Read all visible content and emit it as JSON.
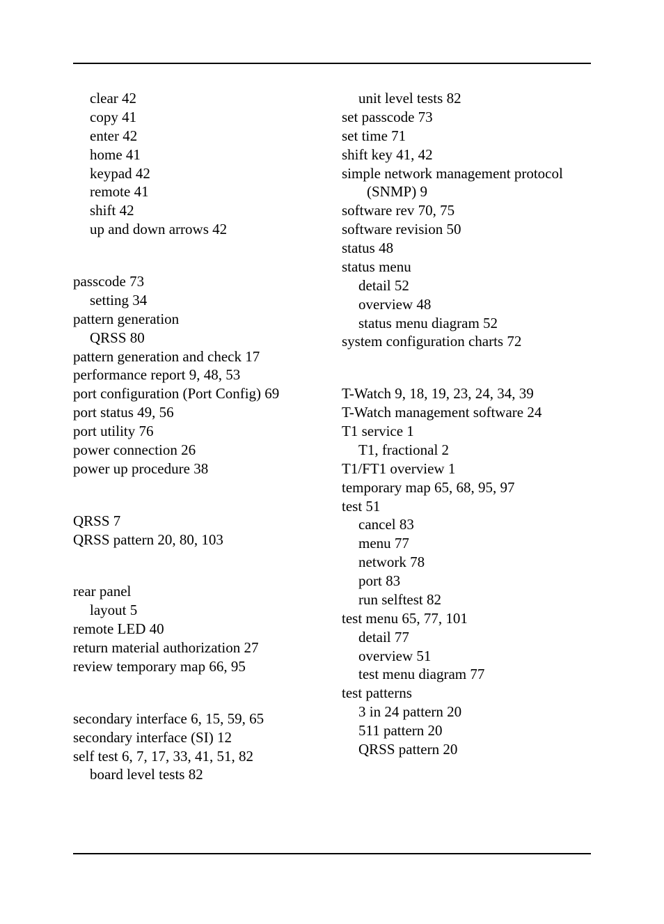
{
  "page": {
    "background_color": "#ffffff",
    "text_color": "#000000",
    "rule_color": "#000000",
    "font_family": "Palatino",
    "body_fontsize_pt": 16
  },
  "entries": [
    {
      "indent": 1,
      "term": "clear",
      "pages": "42"
    },
    {
      "indent": 1,
      "term": "copy",
      "pages": "41"
    },
    {
      "indent": 1,
      "term": "enter",
      "pages": "42"
    },
    {
      "indent": 1,
      "term": "home",
      "pages": "41"
    },
    {
      "indent": 1,
      "term": "keypad",
      "pages": "42"
    },
    {
      "indent": 1,
      "term": "remote",
      "pages": "41"
    },
    {
      "indent": 1,
      "term": "shift",
      "pages": "42"
    },
    {
      "indent": 1,
      "term": "up and down arrows",
      "pages": "42"
    },
    {
      "gap": true
    },
    {
      "indent": 0,
      "term": "passcode",
      "pages": "73"
    },
    {
      "indent": 1,
      "term": "setting",
      "pages": "34"
    },
    {
      "indent": 0,
      "term": "pattern generation",
      "pages": ""
    },
    {
      "indent": 1,
      "term": "QRSS",
      "pages": "80"
    },
    {
      "indent": 0,
      "term": "pattern generation and check",
      "pages": "17"
    },
    {
      "indent": 0,
      "term": "performance report",
      "pages": "9,  48,  53"
    },
    {
      "indent": 0,
      "term": "port configuration (Port Config)",
      "pages": "69"
    },
    {
      "indent": 0,
      "term": "port status",
      "pages": "49,  56"
    },
    {
      "indent": 0,
      "term": "port utility",
      "pages": "76"
    },
    {
      "indent": 0,
      "term": "power connection",
      "pages": "26"
    },
    {
      "indent": 0,
      "term": "power up procedure",
      "pages": "38"
    },
    {
      "gap": true
    },
    {
      "indent": 0,
      "term": "QRSS",
      "pages": "7"
    },
    {
      "indent": 0,
      "term": "QRSS pattern",
      "pages": "20,  80,  103"
    },
    {
      "gap": true
    },
    {
      "indent": 0,
      "term": "rear panel",
      "pages": ""
    },
    {
      "indent": 1,
      "term": "layout",
      "pages": "5"
    },
    {
      "indent": 0,
      "term": "remote LED",
      "pages": "40"
    },
    {
      "indent": 0,
      "term": "return material authorization",
      "pages": "27"
    },
    {
      "indent": 0,
      "term": "review temporary map",
      "pages": "66,  95"
    },
    {
      "gap": true
    },
    {
      "indent": 0,
      "term": "secondary interface",
      "pages": "6,  15,  59,  65"
    },
    {
      "indent": 0,
      "term": "secondary interface (SI)",
      "pages": "12"
    },
    {
      "indent": 0,
      "term": "self test",
      "pages": "6,  7,  17,  33,  41,  51,  82"
    },
    {
      "indent": 1,
      "term": "board level tests",
      "pages": "82"
    },
    {
      "indent": 1,
      "term": "unit level tests",
      "pages": "82",
      "col_break": true
    },
    {
      "indent": 0,
      "term": "set passcode",
      "pages": "73"
    },
    {
      "indent": 0,
      "term": "set time",
      "pages": "71"
    },
    {
      "indent": 0,
      "term": "shift key",
      "pages": "41,  42"
    },
    {
      "indent": 0,
      "term": "simple network management protocol (SNMP)",
      "pages": "9"
    },
    {
      "indent": 0,
      "term": "software rev",
      "pages": "70,  75"
    },
    {
      "indent": 0,
      "term": "software revision",
      "pages": "50"
    },
    {
      "indent": 0,
      "term": "status",
      "pages": "48"
    },
    {
      "indent": 0,
      "term": "status menu",
      "pages": ""
    },
    {
      "indent": 1,
      "term": "detail",
      "pages": "52"
    },
    {
      "indent": 1,
      "term": "overview",
      "pages": "48"
    },
    {
      "indent": 1,
      "term": "status menu diagram",
      "pages": "52"
    },
    {
      "indent": 0,
      "term": "system configuration charts",
      "pages": "72"
    },
    {
      "gap": true
    },
    {
      "indent": 0,
      "term": "T-Watch",
      "pages": "9,  18,  19,  23,  24,  34,  39"
    },
    {
      "indent": 0,
      "term": "T-Watch management software",
      "pages": "24"
    },
    {
      "indent": 0,
      "term": "T1 service",
      "pages": "1"
    },
    {
      "indent": 1,
      "term": "T1, fractional",
      "pages": "2"
    },
    {
      "indent": 0,
      "term": "T1/FT1 overview",
      "pages": "1"
    },
    {
      "indent": 0,
      "term": "temporary map",
      "pages": "65,  68,  95,  97"
    },
    {
      "indent": 0,
      "term": "test",
      "pages": "51"
    },
    {
      "indent": 1,
      "term": "cancel",
      "pages": "83"
    },
    {
      "indent": 1,
      "term": "menu",
      "pages": "77"
    },
    {
      "indent": 1,
      "term": "network",
      "pages": "78"
    },
    {
      "indent": 1,
      "term": "port",
      "pages": "83"
    },
    {
      "indent": 1,
      "term": "run selftest",
      "pages": "82"
    },
    {
      "indent": 0,
      "term": "test menu",
      "pages": "65,  77,  101"
    },
    {
      "indent": 1,
      "term": "detail",
      "pages": "77"
    },
    {
      "indent": 1,
      "term": "overview",
      "pages": "51"
    },
    {
      "indent": 1,
      "term": "test menu diagram",
      "pages": "77"
    },
    {
      "indent": 0,
      "term": "test patterns",
      "pages": ""
    },
    {
      "indent": 1,
      "term": "3 in 24 pattern",
      "pages": "20"
    },
    {
      "indent": 1,
      "term": "511 pattern",
      "pages": "20"
    },
    {
      "indent": 1,
      "term": "QRSS pattern",
      "pages": "20"
    }
  ]
}
